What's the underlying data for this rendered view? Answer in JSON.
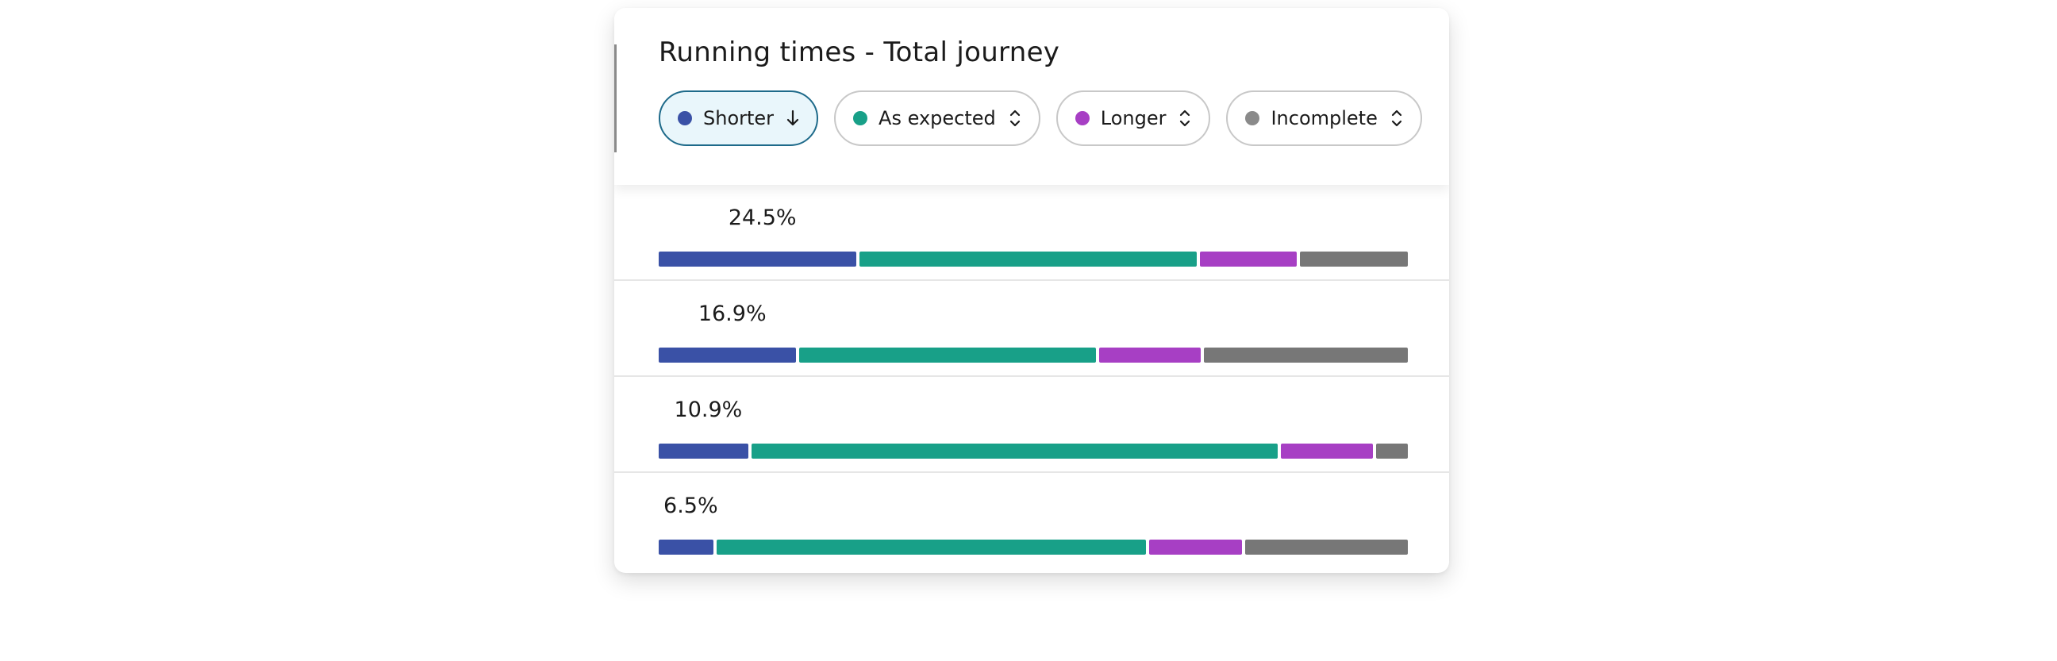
{
  "title": "Running times - Total journey",
  "filters": [
    {
      "label": "Shorter",
      "color": "#3a51a6",
      "icon": "arrow-down-icon",
      "active": true
    },
    {
      "label": "As expected",
      "color": "#18a088",
      "icon": "sort-icon",
      "active": false
    },
    {
      "label": "Longer",
      "color": "#a73fc4",
      "icon": "sort-icon",
      "active": false
    },
    {
      "label": "Incomplete",
      "color": "#8a8a8a",
      "icon": "sort-icon",
      "active": false
    }
  ],
  "colors": {
    "shorter": "#3a51a6",
    "as_expected": "#18a088",
    "longer": "#a73fc4",
    "incomplete": "#777777"
  },
  "chart_data": {
    "type": "bar",
    "orientation": "horizontal",
    "stacked": true,
    "normalized": true,
    "title": "Running times - Total journey",
    "series_names": [
      "Shorter",
      "As expected",
      "Longer",
      "Incomplete"
    ],
    "rows": [
      {
        "label": "24.5%",
        "values": [
          26.6,
          45.3,
          13.0,
          14.5
        ]
      },
      {
        "label": "16.9%",
        "values": [
          18.5,
          39.8,
          13.7,
          27.4
        ]
      },
      {
        "label": "10.9%",
        "values": [
          12.0,
          70.5,
          12.3,
          4.3
        ]
      },
      {
        "label": "6.5%",
        "values": [
          7.3,
          57.6,
          12.4,
          21.8
        ]
      }
    ]
  }
}
